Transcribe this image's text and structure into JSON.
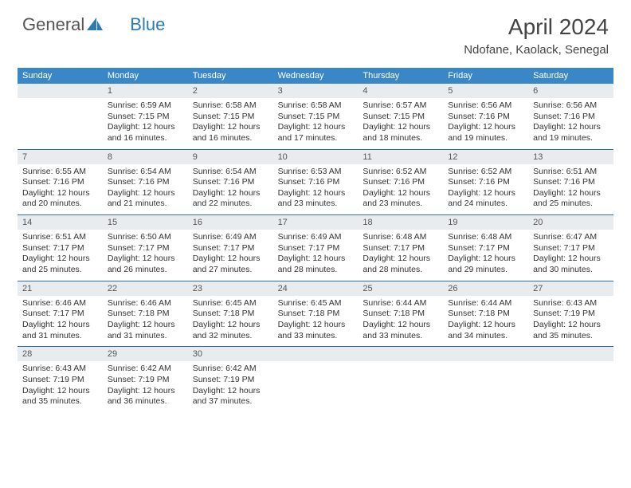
{
  "logo": {
    "part1": "General",
    "part2": "Blue"
  },
  "title": "April 2024",
  "subtitle": "Ndofane, Kaolack, Senegal",
  "colors": {
    "header_bg": "#3a87c7",
    "daynum_bg": "#e9ecef",
    "divider": "#2a6fa5",
    "text": "#333333",
    "logo_gray": "#555555",
    "logo_blue": "#2a7ab8"
  },
  "weekdays": [
    "Sunday",
    "Monday",
    "Tuesday",
    "Wednesday",
    "Thursday",
    "Friday",
    "Saturday"
  ],
  "grid": [
    [
      {
        "day": "",
        "lines": []
      },
      {
        "day": "1",
        "lines": [
          "Sunrise: 6:59 AM",
          "Sunset: 7:15 PM",
          "Daylight: 12 hours",
          "and 16 minutes."
        ]
      },
      {
        "day": "2",
        "lines": [
          "Sunrise: 6:58 AM",
          "Sunset: 7:15 PM",
          "Daylight: 12 hours",
          "and 16 minutes."
        ]
      },
      {
        "day": "3",
        "lines": [
          "Sunrise: 6:58 AM",
          "Sunset: 7:15 PM",
          "Daylight: 12 hours",
          "and 17 minutes."
        ]
      },
      {
        "day": "4",
        "lines": [
          "Sunrise: 6:57 AM",
          "Sunset: 7:15 PM",
          "Daylight: 12 hours",
          "and 18 minutes."
        ]
      },
      {
        "day": "5",
        "lines": [
          "Sunrise: 6:56 AM",
          "Sunset: 7:16 PM",
          "Daylight: 12 hours",
          "and 19 minutes."
        ]
      },
      {
        "day": "6",
        "lines": [
          "Sunrise: 6:56 AM",
          "Sunset: 7:16 PM",
          "Daylight: 12 hours",
          "and 19 minutes."
        ]
      }
    ],
    [
      {
        "day": "7",
        "lines": [
          "Sunrise: 6:55 AM",
          "Sunset: 7:16 PM",
          "Daylight: 12 hours",
          "and 20 minutes."
        ]
      },
      {
        "day": "8",
        "lines": [
          "Sunrise: 6:54 AM",
          "Sunset: 7:16 PM",
          "Daylight: 12 hours",
          "and 21 minutes."
        ]
      },
      {
        "day": "9",
        "lines": [
          "Sunrise: 6:54 AM",
          "Sunset: 7:16 PM",
          "Daylight: 12 hours",
          "and 22 minutes."
        ]
      },
      {
        "day": "10",
        "lines": [
          "Sunrise: 6:53 AM",
          "Sunset: 7:16 PM",
          "Daylight: 12 hours",
          "and 23 minutes."
        ]
      },
      {
        "day": "11",
        "lines": [
          "Sunrise: 6:52 AM",
          "Sunset: 7:16 PM",
          "Daylight: 12 hours",
          "and 23 minutes."
        ]
      },
      {
        "day": "12",
        "lines": [
          "Sunrise: 6:52 AM",
          "Sunset: 7:16 PM",
          "Daylight: 12 hours",
          "and 24 minutes."
        ]
      },
      {
        "day": "13",
        "lines": [
          "Sunrise: 6:51 AM",
          "Sunset: 7:16 PM",
          "Daylight: 12 hours",
          "and 25 minutes."
        ]
      }
    ],
    [
      {
        "day": "14",
        "lines": [
          "Sunrise: 6:51 AM",
          "Sunset: 7:17 PM",
          "Daylight: 12 hours",
          "and 25 minutes."
        ]
      },
      {
        "day": "15",
        "lines": [
          "Sunrise: 6:50 AM",
          "Sunset: 7:17 PM",
          "Daylight: 12 hours",
          "and 26 minutes."
        ]
      },
      {
        "day": "16",
        "lines": [
          "Sunrise: 6:49 AM",
          "Sunset: 7:17 PM",
          "Daylight: 12 hours",
          "and 27 minutes."
        ]
      },
      {
        "day": "17",
        "lines": [
          "Sunrise: 6:49 AM",
          "Sunset: 7:17 PM",
          "Daylight: 12 hours",
          "and 28 minutes."
        ]
      },
      {
        "day": "18",
        "lines": [
          "Sunrise: 6:48 AM",
          "Sunset: 7:17 PM",
          "Daylight: 12 hours",
          "and 28 minutes."
        ]
      },
      {
        "day": "19",
        "lines": [
          "Sunrise: 6:48 AM",
          "Sunset: 7:17 PM",
          "Daylight: 12 hours",
          "and 29 minutes."
        ]
      },
      {
        "day": "20",
        "lines": [
          "Sunrise: 6:47 AM",
          "Sunset: 7:17 PM",
          "Daylight: 12 hours",
          "and 30 minutes."
        ]
      }
    ],
    [
      {
        "day": "21",
        "lines": [
          "Sunrise: 6:46 AM",
          "Sunset: 7:17 PM",
          "Daylight: 12 hours",
          "and 31 minutes."
        ]
      },
      {
        "day": "22",
        "lines": [
          "Sunrise: 6:46 AM",
          "Sunset: 7:18 PM",
          "Daylight: 12 hours",
          "and 31 minutes."
        ]
      },
      {
        "day": "23",
        "lines": [
          "Sunrise: 6:45 AM",
          "Sunset: 7:18 PM",
          "Daylight: 12 hours",
          "and 32 minutes."
        ]
      },
      {
        "day": "24",
        "lines": [
          "Sunrise: 6:45 AM",
          "Sunset: 7:18 PM",
          "Daylight: 12 hours",
          "and 33 minutes."
        ]
      },
      {
        "day": "25",
        "lines": [
          "Sunrise: 6:44 AM",
          "Sunset: 7:18 PM",
          "Daylight: 12 hours",
          "and 33 minutes."
        ]
      },
      {
        "day": "26",
        "lines": [
          "Sunrise: 6:44 AM",
          "Sunset: 7:18 PM",
          "Daylight: 12 hours",
          "and 34 minutes."
        ]
      },
      {
        "day": "27",
        "lines": [
          "Sunrise: 6:43 AM",
          "Sunset: 7:19 PM",
          "Daylight: 12 hours",
          "and 35 minutes."
        ]
      }
    ],
    [
      {
        "day": "28",
        "lines": [
          "Sunrise: 6:43 AM",
          "Sunset: 7:19 PM",
          "Daylight: 12 hours",
          "and 35 minutes."
        ]
      },
      {
        "day": "29",
        "lines": [
          "Sunrise: 6:42 AM",
          "Sunset: 7:19 PM",
          "Daylight: 12 hours",
          "and 36 minutes."
        ]
      },
      {
        "day": "30",
        "lines": [
          "Sunrise: 6:42 AM",
          "Sunset: 7:19 PM",
          "Daylight: 12 hours",
          "and 37 minutes."
        ]
      },
      {
        "day": "",
        "lines": []
      },
      {
        "day": "",
        "lines": []
      },
      {
        "day": "",
        "lines": []
      },
      {
        "day": "",
        "lines": []
      }
    ]
  ]
}
